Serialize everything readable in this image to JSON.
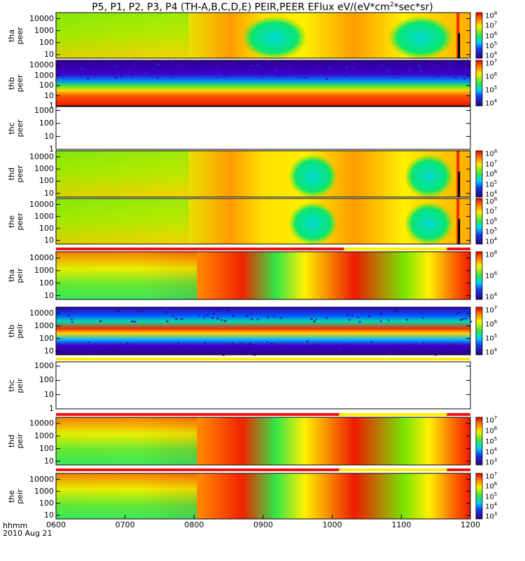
{
  "title": {
    "prefix": "P5, P1, P2, P3, P4 (TH-A,B,C,D,E) PEIR,PEER EFlux eV/(eV*cm",
    "sup": "2",
    "suffix": "*sec*sr)"
  },
  "chart_data": {
    "type": "heatmap",
    "x_axis": {
      "ticks": [
        "0600",
        "0700",
        "0800",
        "0900",
        "1000",
        "1100",
        "1200"
      ],
      "range_hours": [
        6,
        12
      ],
      "label_top": "hhmm",
      "label_bottom": "2010 Aug 21"
    },
    "panels": [
      {
        "name": "peer-a",
        "label_top": "tha",
        "label_bottom": "peer",
        "yticks": [
          "10",
          "100",
          "1000",
          "10000"
        ],
        "ylog_range": [
          0.7,
          4.5
        ],
        "cbar": [
          "4",
          "5",
          "6",
          "7",
          "8"
        ],
        "empty": false,
        "kind": "peer-msh"
      },
      {
        "name": "peer-b",
        "label_top": "thb",
        "label_bottom": "peer",
        "yticks": [
          "1",
          "10",
          "100",
          "1000",
          "10000"
        ],
        "ylog_range": [
          0,
          4.5
        ],
        "cbar": [
          "4",
          "5",
          "6",
          "7"
        ],
        "empty": false,
        "kind": "peer-band"
      },
      {
        "name": "peer-c",
        "label_top": "thc",
        "label_bottom": "peer",
        "yticks": [
          "1",
          "10",
          "100",
          "1000"
        ],
        "ylog_range": [
          0,
          3.3
        ],
        "cbar": [],
        "empty": true,
        "kind": "empty"
      },
      {
        "name": "peer-d",
        "label_top": "thd",
        "label_bottom": "peer",
        "yticks": [
          "10",
          "100",
          "1000",
          "10000"
        ],
        "ylog_range": [
          0.7,
          4.5
        ],
        "cbar": [
          "4",
          "5",
          "6",
          "7",
          "8"
        ],
        "empty": false,
        "kind": "peer-msh"
      },
      {
        "name": "peer-e",
        "label_top": "the",
        "label_bottom": "peer",
        "yticks": [
          "10",
          "100",
          "1000",
          "10000"
        ],
        "ylog_range": [
          0.7,
          4.5
        ],
        "cbar": [
          "4",
          "5",
          "6",
          "7",
          "8"
        ],
        "empty": false,
        "kind": "peer-msh"
      },
      {
        "name": "peir-a",
        "label_top": "tha",
        "label_bottom": "peir",
        "yticks": [
          "10",
          "100",
          "1000",
          "10000"
        ],
        "ylog_range": [
          0.7,
          4.5
        ],
        "cbar": [
          "4",
          "6",
          "8"
        ],
        "empty": false,
        "kind": "peir-msh"
      },
      {
        "name": "peir-b",
        "label_top": "thb",
        "label_bottom": "peir",
        "yticks": [
          "10",
          "100",
          "1000",
          "10000"
        ],
        "ylog_range": [
          0.7,
          4.5
        ],
        "cbar": [
          "4",
          "5",
          "6",
          "7"
        ],
        "empty": false,
        "kind": "peir-band"
      },
      {
        "name": "peir-c",
        "label_top": "thc",
        "label_bottom": "peir",
        "yticks": [
          "1",
          "10",
          "100",
          "1000"
        ],
        "ylog_range": [
          0,
          3.3
        ],
        "cbar": [],
        "empty": true,
        "kind": "empty"
      },
      {
        "name": "peir-d",
        "label_top": "thd",
        "label_bottom": "peir",
        "yticks": [
          "10",
          "100",
          "1000",
          "10000"
        ],
        "ylog_range": [
          0.7,
          4.5
        ],
        "cbar": [
          "3",
          "4",
          "5",
          "6",
          "7"
        ],
        "empty": false,
        "kind": "peir-msh"
      },
      {
        "name": "peir-e",
        "label_top": "the",
        "label_bottom": "peir",
        "yticks": [
          "10",
          "100",
          "1000",
          "10000"
        ],
        "ylog_range": [
          0.7,
          4.5
        ],
        "cbar": [
          "3",
          "4",
          "5",
          "6",
          "7"
        ],
        "empty": false,
        "kind": "peir-msh"
      }
    ],
    "colorbar_base": "10",
    "mode_bars": [
      {
        "after_panel": 5,
        "segments": [
          {
            "from": 6.0,
            "to": 10.17,
            "color": "red"
          },
          {
            "from": 10.17,
            "to": 11.66,
            "color": "yellow"
          },
          {
            "from": 11.66,
            "to": 12.0,
            "color": "red"
          }
        ]
      },
      {
        "after_panel": 7,
        "segments": [
          {
            "from": 6.0,
            "to": 12.0,
            "color": "yellow"
          }
        ]
      },
      {
        "after_panel": 8,
        "segments": [
          {
            "from": 6.0,
            "to": 10.1,
            "color": "red"
          },
          {
            "from": 10.1,
            "to": 11.66,
            "color": "yellow"
          },
          {
            "from": 11.66,
            "to": 12.0,
            "color": "red"
          }
        ]
      },
      {
        "after_panel": 9,
        "segments": [
          {
            "from": 6.0,
            "to": 10.1,
            "color": "red"
          },
          {
            "from": 10.1,
            "to": 11.66,
            "color": "yellow"
          },
          {
            "from": 11.66,
            "to": 12.0,
            "color": "red"
          }
        ]
      }
    ],
    "colors": {
      "mode_red": "#ee1111",
      "mode_yellow": "#ffee00",
      "gap": "#000000"
    }
  }
}
